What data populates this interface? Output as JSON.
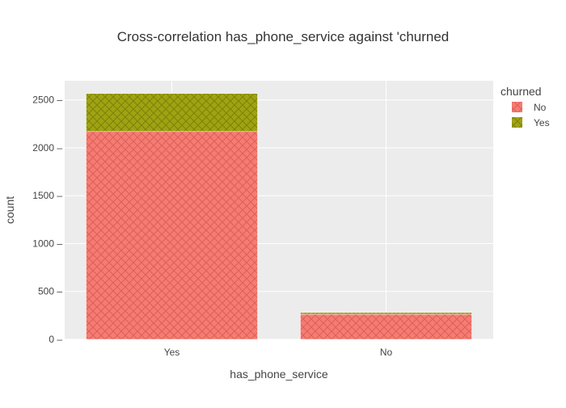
{
  "chart_data": {
    "type": "bar",
    "barmode": "stack",
    "title": "Cross-correlation has_phone_service against 'churned",
    "xlabel": "has_phone_service",
    "ylabel": "count",
    "categories": [
      "Yes",
      "No"
    ],
    "series": [
      {
        "name": "No",
        "values": [
          2170,
          262
        ],
        "color": "#f77b72",
        "pattern_color": "#d9635a"
      },
      {
        "name": "Yes",
        "values": [
          398,
          18
        ],
        "color": "#9fa312",
        "pattern_color": "#7f8307"
      }
    ],
    "ylim": [
      0,
      2700
    ],
    "yticks": [
      0,
      500,
      1000,
      1500,
      2000,
      2500
    ],
    "grid": true,
    "legend": {
      "title": "churned",
      "placement": "top-right",
      "entries": [
        "No",
        "Yes"
      ]
    },
    "colors": {
      "plot_background": "#ececec",
      "gridline": "#ffffff",
      "text": "#444444",
      "title_text": "#333333"
    }
  }
}
